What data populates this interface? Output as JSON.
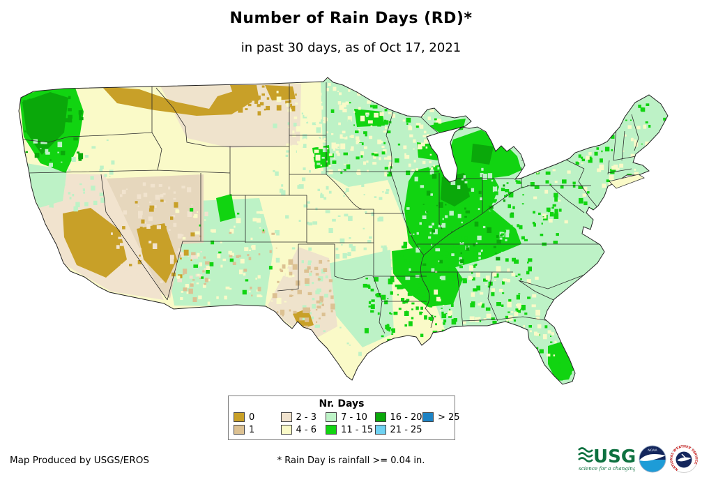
{
  "header": {
    "title": "Number of Rain Days (RD)*",
    "subtitle": "in past 30 days, as of Oct 17, 2021"
  },
  "legend": {
    "title": "Nr. Days",
    "items": [
      {
        "label": "0",
        "color": "#C8A028"
      },
      {
        "label": "1",
        "color": "#DCC192"
      },
      {
        "label": "2 - 3",
        "color": "#F1E3CE"
      },
      {
        "label": "4 - 6",
        "color": "#FAFAC8"
      },
      {
        "label": "7 - 10",
        "color": "#BDF2C6"
      },
      {
        "label": "11 - 15",
        "color": "#11D411"
      },
      {
        "label": "16 - 20",
        "color": "#0AA80A"
      },
      {
        "label": "21 - 25",
        "color": "#6FD2F2"
      },
      {
        "label": "> 25",
        "color": "#1D83C4"
      }
    ]
  },
  "footer": {
    "credit": "Map Produced by USGS/EROS",
    "note": "* Rain Day is rainfall >= 0.04 in."
  },
  "logos": {
    "usgs": {
      "name": "USGS",
      "tagline": "science for a changing world",
      "color": "#0E7140"
    },
    "noaa": {
      "name": "NOAA"
    },
    "nws": {
      "name": "NATIONAL WEATHER SERVICE"
    }
  }
}
